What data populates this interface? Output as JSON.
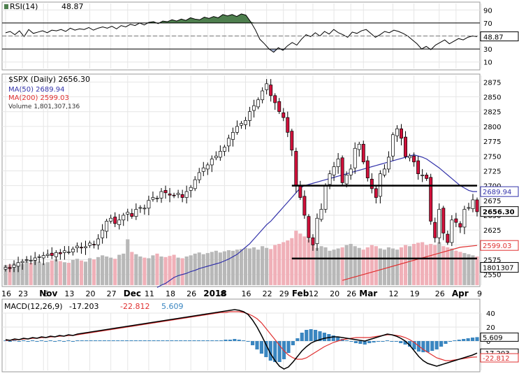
{
  "colors": {
    "bull": "#ffffff",
    "bear": "#d0103a",
    "wick": "#000000",
    "ma50": "#3333aa",
    "ma200": "#e03030",
    "vol_up": "#b8b8b8",
    "vol_down": "#f0b0b8",
    "rsi_fill": "#4e7f4e",
    "macd": "#000000",
    "signal": "#e03030",
    "hist": "#3a86c0",
    "grid": "#e6e6e6"
  },
  "chart_data": [
    {
      "id": "rsi",
      "type": "line",
      "title": "RSI(14)",
      "last_label": "48.87",
      "ylim": [
        0,
        100
      ],
      "ticks": [
        "90",
        "70",
        "50",
        "30",
        "10"
      ],
      "tick_values": [
        90,
        70,
        50,
        30,
        10
      ],
      "levels": [
        70,
        30
      ],
      "values": [
        55,
        57,
        52,
        58,
        49,
        60,
        54,
        56,
        58,
        55,
        59,
        58,
        60,
        57,
        62,
        59,
        61,
        60,
        63,
        59,
        62,
        64,
        62,
        65,
        61,
        66,
        64,
        68,
        66,
        70,
        67,
        71,
        72,
        69,
        73,
        72,
        75,
        73,
        76,
        74,
        78,
        76,
        75,
        79,
        77,
        80,
        78,
        83,
        81,
        83,
        80,
        84,
        82,
        72,
        60,
        45,
        38,
        30,
        25,
        32,
        28,
        35,
        40,
        36,
        45,
        52,
        49,
        55,
        50,
        57,
        53,
        60,
        55,
        52,
        48,
        56,
        54,
        58,
        60,
        54,
        48,
        52,
        57,
        55,
        59,
        57,
        54,
        50,
        44,
        38,
        30,
        34,
        29,
        36,
        40,
        44,
        38,
        42,
        46,
        44,
        48,
        50,
        49
      ]
    },
    {
      "id": "price",
      "type": "candlestick",
      "symbol_label": "$SPX (Daily) 2656.30",
      "ma50_label": "MA(50) 2689.94",
      "ma200_label": "MA(200) 2599.03",
      "volume_label": "Volume 1,801,307,136",
      "last_label": "2656.30",
      "ma50_last": "2689.94",
      "ma200_last": "2599.03",
      "volume_last": "1801307",
      "ylim": [
        2532,
        2886
      ],
      "ticks": [
        "2875",
        "2850",
        "2825",
        "2800",
        "2775",
        "2750",
        "2725",
        "2700",
        "2675",
        "2650",
        "2625",
        "2600",
        "2575",
        "2550"
      ],
      "tick_values": [
        2875,
        2850,
        2825,
        2800,
        2775,
        2750,
        2725,
        2700,
        2675,
        2650,
        2625,
        2600,
        2575,
        2550
      ],
      "hlines": [
        2700,
        2577
      ],
      "x_labels": [
        "16",
        "23",
        "Nov",
        "6",
        "13",
        "20",
        "27",
        "Dec",
        "11",
        "18",
        "26",
        "2018",
        "8",
        "16",
        "22",
        "29",
        "Feb",
        "12",
        "20",
        "26",
        "Mar",
        "12",
        "19",
        "26",
        "Apr",
        "9"
      ],
      "x_label_index": [
        0,
        4,
        9,
        10,
        15,
        20,
        25,
        29,
        34,
        39,
        44,
        48,
        52,
        57,
        62,
        66,
        69,
        73,
        78,
        82,
        85,
        92,
        97,
        103,
        107,
        113
      ],
      "x_label_bold": [
        false,
        false,
        true,
        false,
        false,
        false,
        false,
        true,
        false,
        false,
        false,
        true,
        false,
        false,
        false,
        false,
        true,
        false,
        false,
        false,
        true,
        false,
        false,
        false,
        true,
        false
      ],
      "close": [
        2562,
        2560,
        2566,
        2570,
        2572,
        2575,
        2574,
        2578,
        2580,
        2582,
        2584,
        2582,
        2587,
        2585,
        2590,
        2588,
        2593,
        2598,
        2595,
        2597,
        2603,
        2600,
        2610,
        2625,
        2640,
        2645,
        2636,
        2642,
        2650,
        2655,
        2648,
        2660,
        2663,
        2662,
        2675,
        2680,
        2679,
        2690,
        2688,
        2684,
        2683,
        2687,
        2680,
        2690,
        2697,
        2710,
        2722,
        2730,
        2735,
        2745,
        2750,
        2758,
        2765,
        2780,
        2790,
        2800,
        2805,
        2810,
        2825,
        2835,
        2845,
        2860,
        2872,
        2852,
        2840,
        2825,
        2815,
        2790,
        2760,
        2700,
        2680,
        2650,
        2612,
        2600,
        2645,
        2660,
        2700,
        2720,
        2732,
        2745,
        2705,
        2718,
        2728,
        2763,
        2770,
        2740,
        2713,
        2695,
        2680,
        2720,
        2728,
        2748,
        2786,
        2796,
        2780,
        2749,
        2750,
        2740,
        2720,
        2718,
        2712,
        2640,
        2612,
        2660,
        2620,
        2604,
        2642,
        2638,
        2630,
        2660,
        2663,
        2676,
        2656
      ],
      "volume": [
        35,
        36,
        38,
        40,
        37,
        42,
        39,
        44,
        41,
        38,
        40,
        43,
        45,
        42,
        40,
        39,
        44,
        46,
        43,
        41,
        47,
        45,
        49,
        52,
        50,
        48,
        46,
        53,
        55,
        80,
        58,
        54,
        50,
        48,
        47,
        52,
        55,
        50,
        49,
        51,
        53,
        48,
        47,
        50,
        52,
        55,
        57,
        54,
        56,
        58,
        60,
        57,
        59,
        61,
        60,
        62,
        63,
        65,
        64,
        66,
        62,
        68,
        65,
        63,
        70,
        72,
        75,
        78,
        82,
        95,
        90,
        85,
        80,
        70,
        65,
        68,
        66,
        60,
        62,
        64,
        66,
        70,
        72,
        68,
        65,
        62,
        66,
        70,
        68,
        64,
        62,
        66,
        64,
        62,
        66,
        70,
        68,
        72,
        74,
        75,
        70,
        72,
        70,
        75,
        68,
        66,
        64,
        60,
        58,
        56,
        54,
        52,
        50
      ],
      "ma50": [
        2528,
        2532,
        2535,
        2540,
        2545,
        2548,
        2550,
        2552,
        2555,
        2557,
        2560,
        2562,
        2564,
        2566,
        2568,
        2570,
        2573,
        2576,
        2580,
        2584,
        2590,
        2596,
        2602,
        2610,
        2618,
        2626,
        2634,
        2640,
        2648,
        2656,
        2664,
        2672,
        2680,
        2688,
        2696,
        2700,
        2702,
        2704,
        2706,
        2708,
        2710,
        2712,
        2714,
        2716,
        2718,
        2720,
        2722,
        2724,
        2726,
        2728,
        2730,
        2732,
        2734,
        2736,
        2738,
        2740,
        2742,
        2744,
        2746,
        2748,
        2750,
        2752,
        2750,
        2748,
        2745,
        2740,
        2735,
        2730,
        2724,
        2718,
        2712,
        2706,
        2700,
        2696,
        2692,
        2690,
        2689.94
      ],
      "ma200": [
        2540,
        2548,
        2556,
        2564,
        2572,
        2580,
        2588,
        2596,
        2599.03
      ]
    },
    {
      "id": "macd",
      "type": "line",
      "title": "MACD(12,26,9)",
      "macd_label": "-17.203",
      "signal_label": "-22.812",
      "hist_label": "5.609",
      "ylim": [
        -42,
        48
      ],
      "ticks": [
        "40",
        "20",
        "0"
      ],
      "tick_values": [
        40,
        20,
        0
      ],
      "macd": [
        2,
        1,
        3,
        2,
        4,
        3,
        5,
        4,
        6,
        5,
        7,
        6,
        8,
        7,
        9,
        8,
        10,
        11,
        12,
        13,
        14,
        15,
        16,
        17,
        18,
        19,
        20,
        21,
        22,
        23,
        24,
        25,
        26,
        27,
        28,
        29,
        30,
        31,
        32,
        33,
        34,
        35,
        36,
        37,
        38,
        39,
        40,
        41,
        42,
        43,
        44,
        45,
        44,
        42,
        38,
        30,
        20,
        8,
        -5,
        -18,
        -28,
        -36,
        -40,
        -37,
        -30,
        -22,
        -14,
        -8,
        -3,
        0,
        2,
        4,
        5,
        6,
        6,
        5,
        4,
        3,
        2,
        1,
        0,
        2,
        4,
        6,
        8,
        10,
        9,
        7,
        4,
        0,
        -6,
        -14,
        -22,
        -28,
        -32,
        -34,
        -36,
        -34,
        -32,
        -30,
        -28,
        -26,
        -24,
        -22,
        -20,
        -17.203
      ],
      "signal": [
        1,
        1,
        2,
        2,
        3,
        3,
        4,
        4,
        5,
        5,
        6,
        6,
        7,
        7,
        8,
        8,
        9,
        10,
        11,
        12,
        13,
        14,
        15,
        16,
        17,
        18,
        19,
        20,
        21,
        22,
        23,
        24,
        25,
        26,
        27,
        28,
        29,
        30,
        31,
        32,
        33,
        34,
        35,
        36,
        37,
        38,
        39,
        40,
        41,
        41,
        42,
        42,
        42,
        41,
        39,
        36,
        32,
        26,
        18,
        10,
        2,
        -6,
        -14,
        -20,
        -24,
        -26,
        -26,
        -24,
        -20,
        -16,
        -12,
        -8,
        -5,
        -2,
        0,
        2,
        3,
        4,
        5,
        5,
        5,
        5,
        6,
        7,
        8,
        9,
        9,
        8,
        7,
        5,
        2,
        -2,
        -7,
        -12,
        -16,
        -20,
        -24,
        -26,
        -28,
        -28,
        -27,
        -26,
        -25,
        -24,
        -23,
        -22.812
      ],
      "hist": [
        1,
        0,
        1,
        0,
        1,
        0,
        1,
        0,
        1,
        0,
        1,
        0,
        1,
        0,
        1,
        0,
        1,
        1,
        1,
        1,
        1,
        1,
        1,
        1,
        1,
        1,
        1,
        1,
        1,
        1,
        1,
        1,
        1,
        1,
        1,
        1,
        1,
        1,
        1,
        1,
        1,
        1,
        1,
        1,
        1,
        1,
        1,
        1,
        1,
        2,
        2,
        3,
        2,
        1,
        -1,
        -6,
        -12,
        -18,
        -23,
        -28,
        -30,
        -30,
        -26,
        -17,
        -6,
        4,
        12,
        16,
        17,
        16,
        14,
        12,
        10,
        8,
        6,
        3,
        1,
        -1,
        -3,
        -4,
        -5,
        -3,
        -2,
        -1,
        0,
        1,
        0,
        -1,
        -3,
        -5,
        -8,
        -12,
        -15,
        -16,
        -16,
        -14,
        -12,
        -8,
        -4,
        -1,
        1,
        2,
        3,
        4,
        5,
        5.609
      ]
    }
  ]
}
